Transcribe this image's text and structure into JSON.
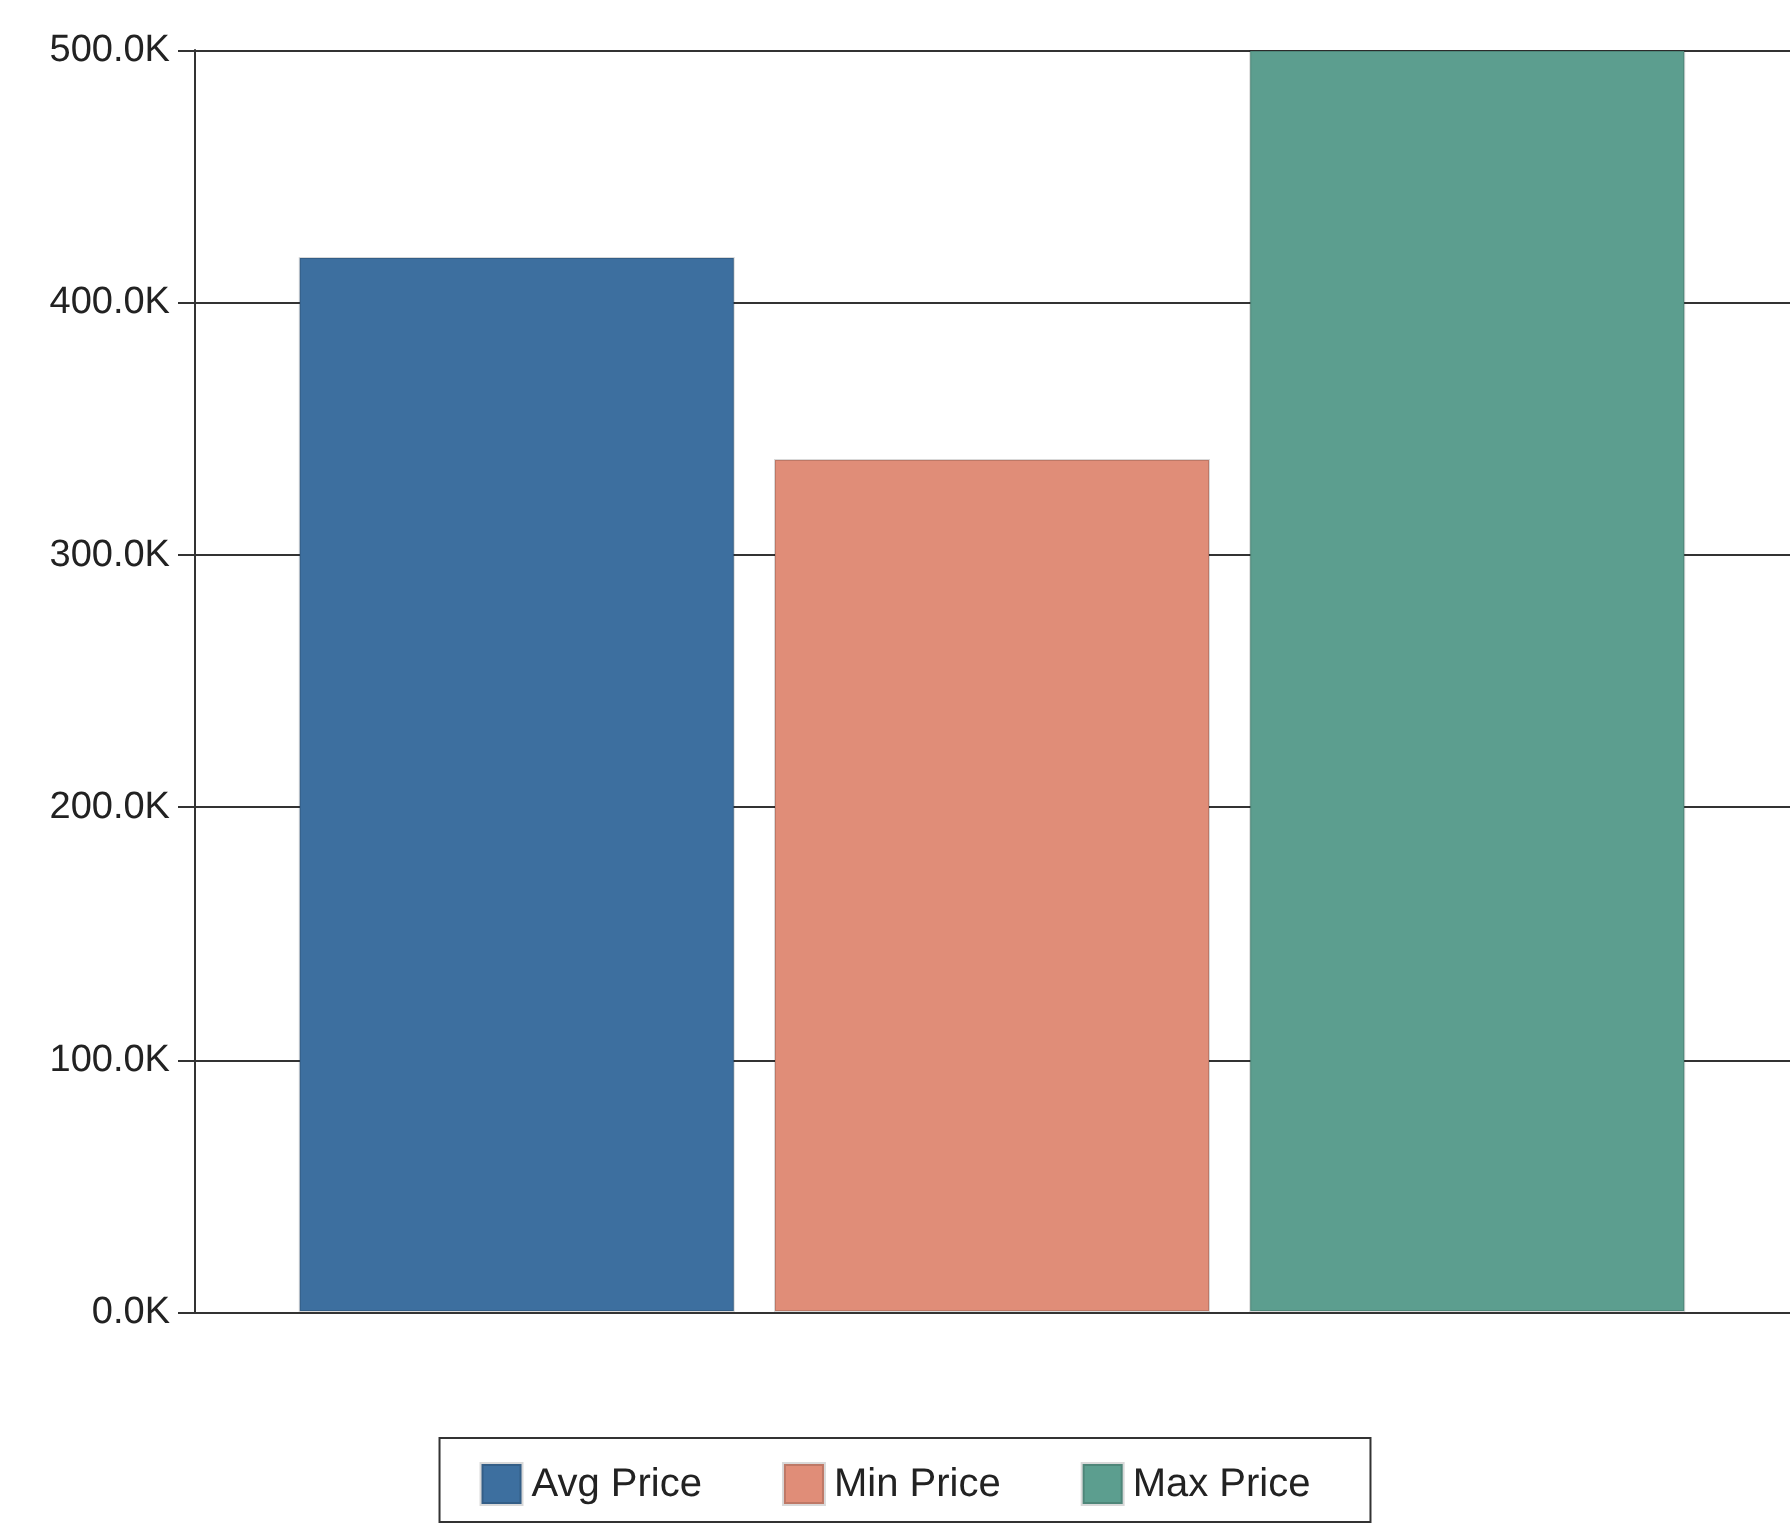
{
  "chart_data": {
    "type": "bar",
    "categories": [
      null
    ],
    "series": [
      {
        "name": "Avg Price",
        "color": "#3d6f9f",
        "values": [
          418000
        ]
      },
      {
        "name": "Min Price",
        "color": "#e08d78",
        "values": [
          338000
        ]
      },
      {
        "name": "Max Price",
        "color": "#5c9e8f",
        "values": [
          500000
        ]
      }
    ],
    "ylim": [
      0,
      500000
    ],
    "yticks": [
      {
        "value": 0,
        "label": "0.0K"
      },
      {
        "value": 100000,
        "label": "100.0K"
      },
      {
        "value": 200000,
        "label": "200.0K"
      },
      {
        "value": 300000,
        "label": "300.0K"
      },
      {
        "value": 400000,
        "label": "400.0K"
      },
      {
        "value": 500000,
        "label": "500.0K"
      }
    ],
    "grid": "y",
    "legend": "bottom"
  }
}
